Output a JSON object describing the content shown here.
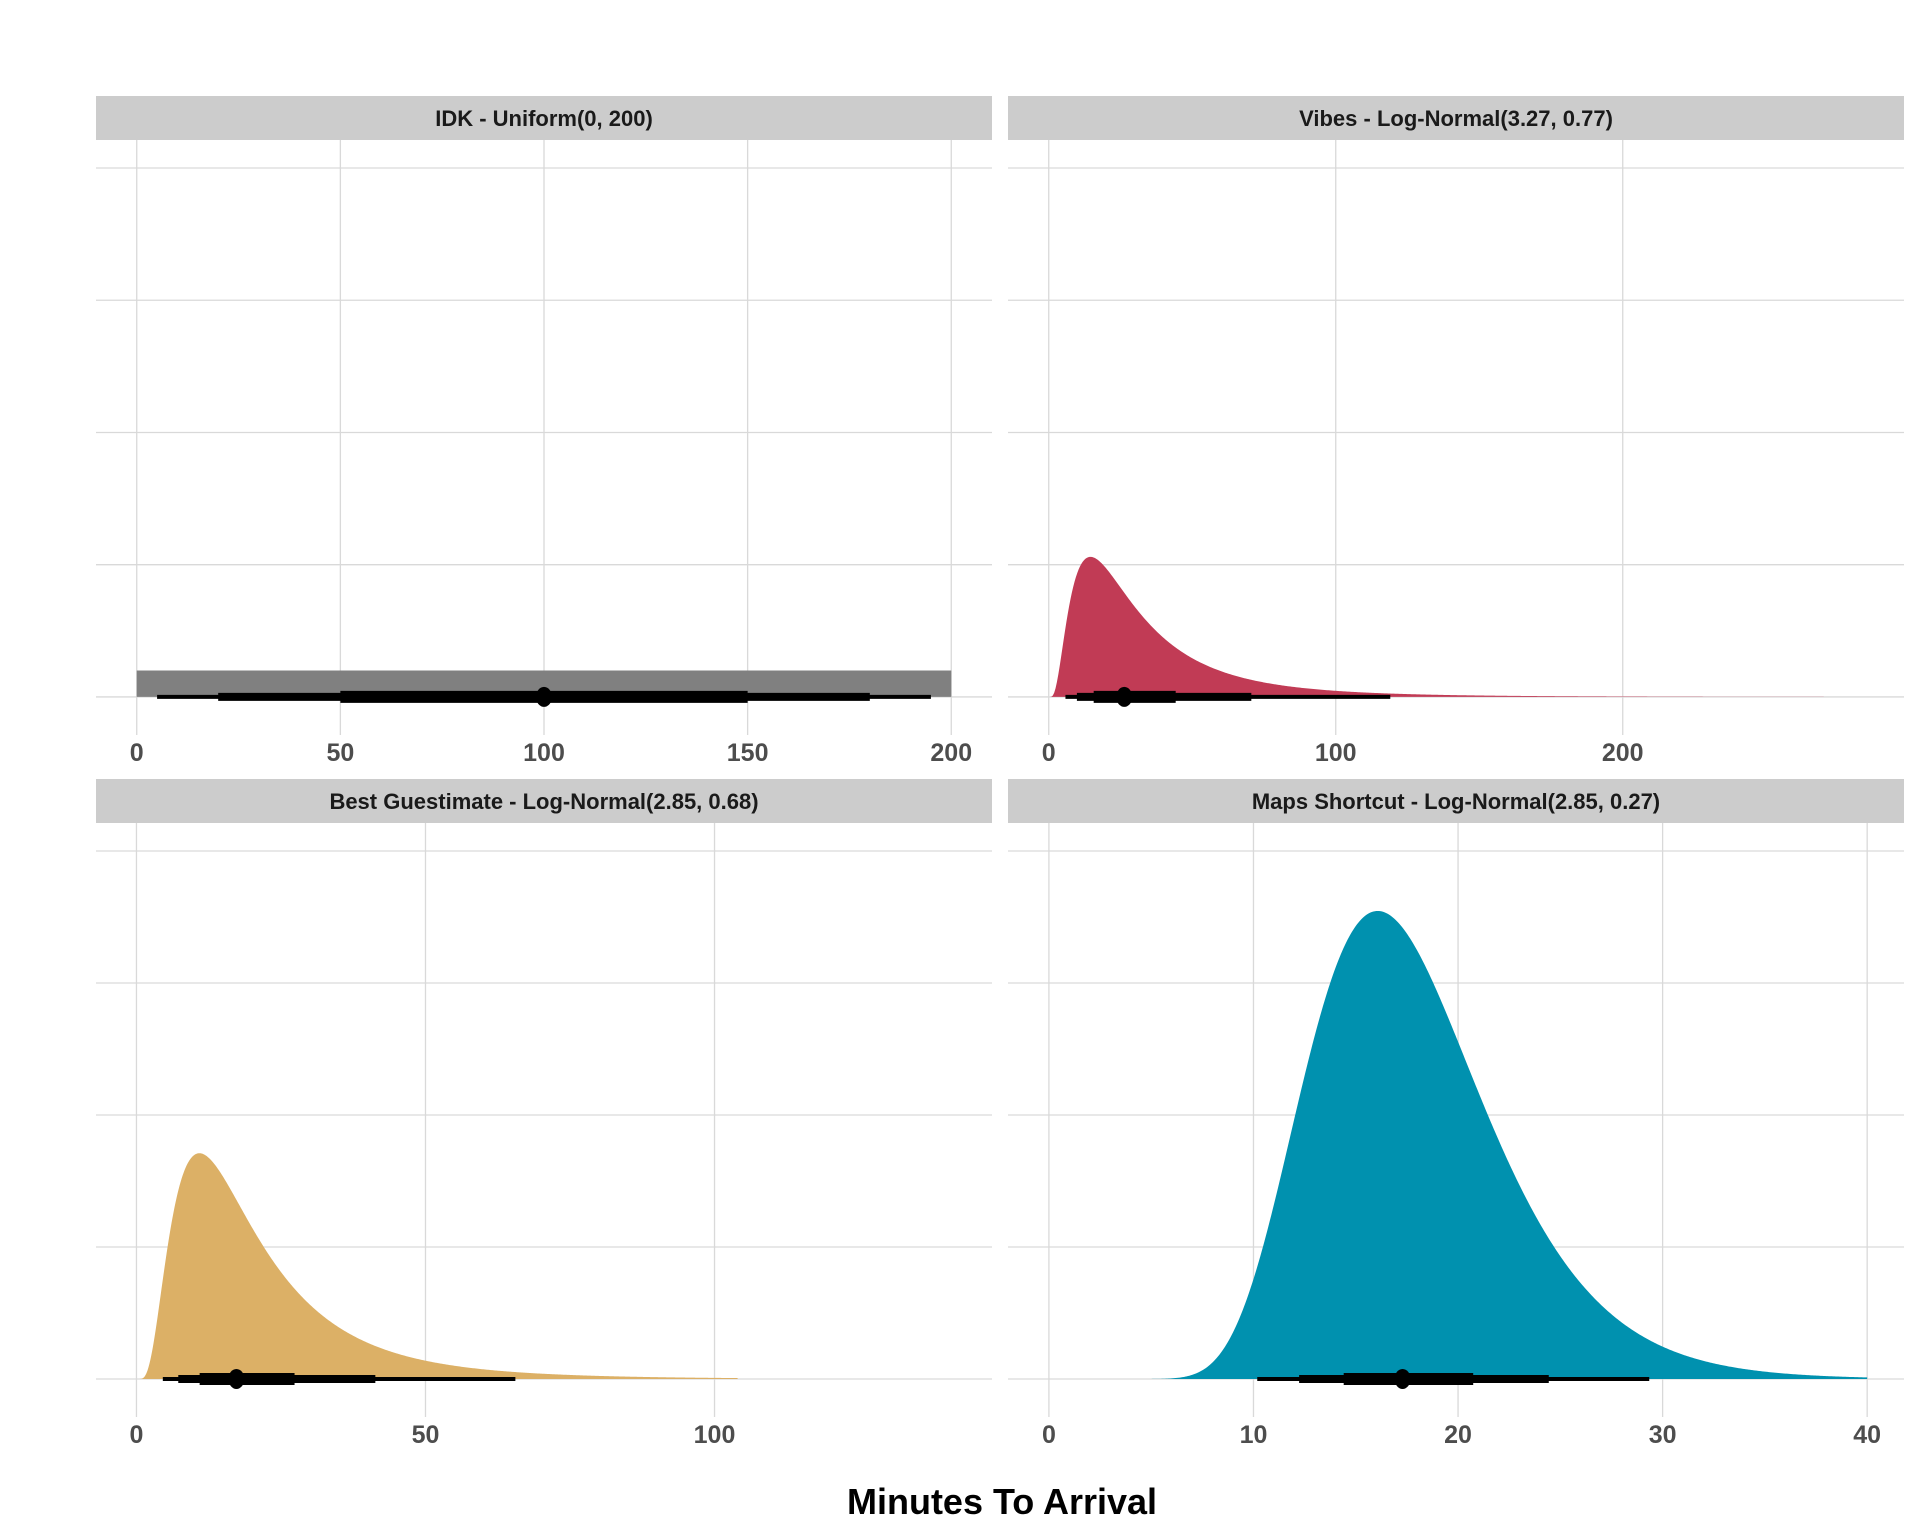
{
  "chart_data": {
    "type": "area",
    "xlabel": "Minutes To Arrival",
    "ylabel": "",
    "y_axis": {
      "ylim": [
        -0.0072,
        0.1053
      ],
      "gridlines": [
        0,
        0.025,
        0.05,
        0.075,
        0.1
      ],
      "tick_labels_shown": false
    },
    "interval_levels": [
      0.5,
      0.8,
      0.95
    ],
    "panels": [
      {
        "title": "IDK - Uniform(0, 200)",
        "dist": "uniform",
        "params": [
          0,
          200
        ],
        "color": "#808080",
        "xlim": [
          -10,
          210
        ],
        "xticks": [
          0,
          50,
          100,
          150,
          200
        ],
        "density_range": [
          0,
          200
        ]
      },
      {
        "title": "Vibes - Log-Normal(3.27, 0.77)",
        "dist": "lognormal",
        "params": [
          3.27,
          0.77
        ],
        "color": "#C13B55",
        "xlim": [
          -14.2,
          298
        ],
        "xticks": [
          0,
          100,
          200
        ],
        "density_range": [
          0,
          284
        ]
      },
      {
        "title": "Best Guestimate - Log-Normal(2.85, 0.68)",
        "dist": "lognormal",
        "params": [
          2.85,
          0.68
        ],
        "color": "#DCB066",
        "xlim": [
          -7,
          148
        ],
        "xticks": [
          0,
          50,
          100
        ],
        "density_range": [
          0,
          104
        ]
      },
      {
        "title": "Maps Shortcut - Log-Normal(2.85, 0.27)",
        "dist": "lognormal",
        "params": [
          2.85,
          0.27
        ],
        "color": "#0091AF",
        "xlim": [
          -2,
          41.8
        ],
        "xticks": [
          0,
          10,
          20,
          30,
          40
        ],
        "density_range": [
          0,
          40
        ]
      }
    ]
  }
}
